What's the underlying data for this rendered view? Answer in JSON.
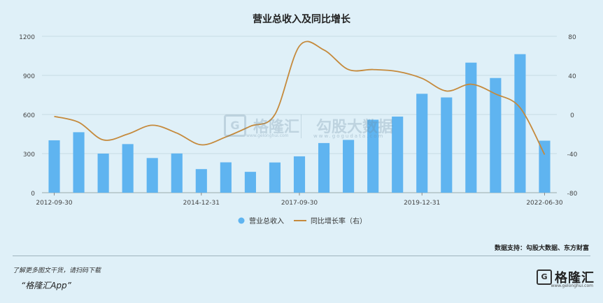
{
  "chart_data": {
    "type": "bar",
    "title": "营业总收入及同比增长",
    "x_tick_labels": [
      "2012-09-30",
      "2014-12-31",
      "2017-09-30",
      "2019-12-31",
      "2022-06-30"
    ],
    "y_left_ticks": [
      "0",
      "300",
      "600",
      "900",
      "1200"
    ],
    "y_right_ticks": [
      "-80",
      "-40",
      "0",
      "40",
      "80"
    ],
    "ylim_left": [
      0,
      1200
    ],
    "ylim_right": [
      -80,
      80
    ],
    "grid": true,
    "legend_position": "bottom",
    "series": [
      {
        "name": "营业总收入",
        "kind": "bar",
        "axis": "left",
        "color": "#5fb4f0",
        "values": [
          402,
          464,
          300,
          373,
          266,
          301,
          181,
          233,
          160,
          232,
          279,
          381,
          405,
          560,
          584,
          759,
          731,
          998,
          880,
          1063,
          399
        ]
      },
      {
        "name": "同比增长率（右）",
        "kind": "line",
        "axis": "right",
        "color": "#c58a3c",
        "values": [
          -2,
          -8,
          -26,
          -20,
          -11,
          -19,
          -31,
          -23,
          -12,
          0,
          70,
          66,
          46,
          46,
          44,
          37,
          24,
          31,
          21,
          7,
          -41
        ]
      }
    ]
  },
  "footer": {
    "source": "数据支持：勾股大数据、东方财富",
    "note": "了解更多图文干货，请扫码下载",
    "app": "“格隆汇App”",
    "logo_mark": "G",
    "logo_text": "格隆汇",
    "logo_sub": "www.gelonghui.com"
  },
  "watermark": {
    "mark": "G",
    "brand_a": "格隆汇",
    "brand_b": "勾股大数据",
    "url_a": "www.gelonghui.com",
    "url_b": "www.gogudata.com"
  }
}
